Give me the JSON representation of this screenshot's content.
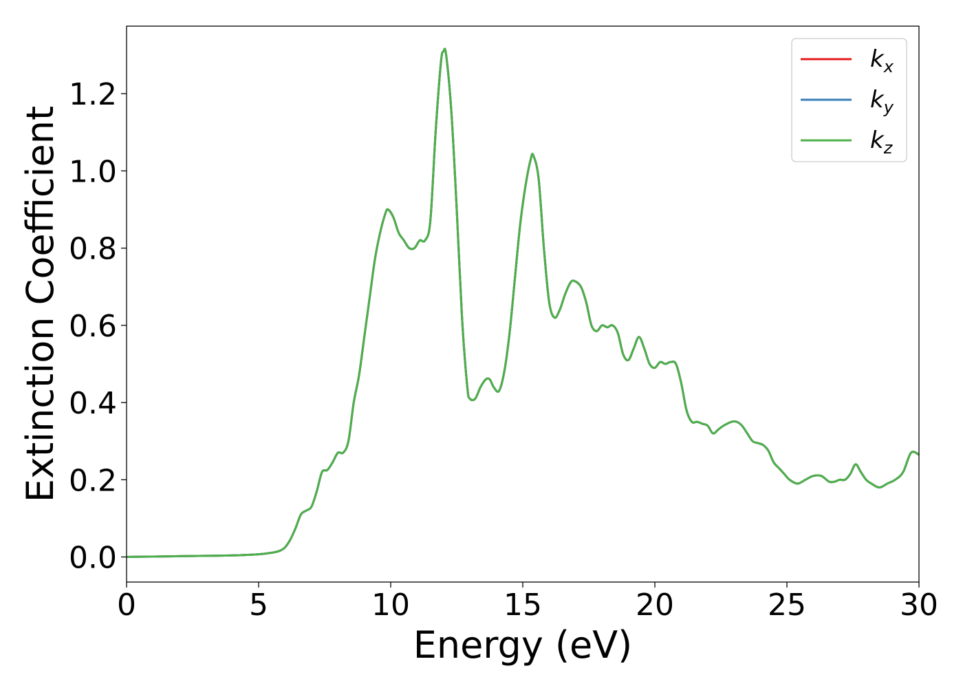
{
  "chart_data": {
    "type": "line",
    "xlabel": "Energy (eV)",
    "ylabel": "Extinction Coefficient",
    "xlim": [
      0,
      30
    ],
    "ylim": [
      -0.065,
      1.375
    ],
    "xticks": [
      0,
      5,
      10,
      15,
      20,
      25,
      30
    ],
    "yticks": [
      0.0,
      0.2,
      0.4,
      0.6,
      0.8,
      1.0,
      1.2
    ],
    "xtick_labels": [
      "0",
      "5",
      "10",
      "15",
      "20",
      "25",
      "30"
    ],
    "ytick_labels": [
      "0.0",
      "0.2",
      "0.4",
      "0.6",
      "0.8",
      "1.0",
      "1.2"
    ],
    "grid": false,
    "legend": {
      "placement": "top-right"
    },
    "series": [
      {
        "name": "kx",
        "label_main": "k",
        "label_sub": "x",
        "color": "#e41a1c",
        "x": [
          0,
          1,
          2,
          3,
          4,
          5,
          5.5,
          5.8,
          6.0,
          6.2,
          6.4,
          6.6,
          6.8,
          7.0,
          7.2,
          7.4,
          7.6,
          7.8,
          8.0,
          8.2,
          8.4,
          8.6,
          8.8,
          9.0,
          9.2,
          9.4,
          9.6,
          9.8,
          9.9,
          10.1,
          10.3,
          10.5,
          10.7,
          10.9,
          11.1,
          11.3,
          11.5,
          11.7,
          11.9,
          12.0,
          12.1,
          12.3,
          12.5,
          12.7,
          12.9,
          13.0,
          13.2,
          13.4,
          13.6,
          13.75,
          13.9,
          14.1,
          14.3,
          14.5,
          14.7,
          14.9,
          15.1,
          15.3,
          15.4,
          15.6,
          15.8,
          16.0,
          16.2,
          16.4,
          16.6,
          16.8,
          16.95,
          17.2,
          17.4,
          17.6,
          17.8,
          18.0,
          18.2,
          18.4,
          18.6,
          18.8,
          19.0,
          19.2,
          19.4,
          19.6,
          19.8,
          20.0,
          20.2,
          20.4,
          20.6,
          20.8,
          21.0,
          21.2,
          21.4,
          21.6,
          21.8,
          22.0,
          22.2,
          22.4,
          22.6,
          22.9,
          23.1,
          23.3,
          23.5,
          23.7,
          23.9,
          24.1,
          24.3,
          24.5,
          24.7,
          24.9,
          25.1,
          25.4,
          25.7,
          26.0,
          26.3,
          26.6,
          26.8,
          27.0,
          27.2,
          27.4,
          27.6,
          27.8,
          28.0,
          28.2,
          28.5,
          28.8,
          29.1,
          29.4,
          29.7,
          30.0
        ],
        "y": [
          0.0,
          0.001,
          0.002,
          0.003,
          0.004,
          0.007,
          0.011,
          0.016,
          0.025,
          0.045,
          0.075,
          0.11,
          0.12,
          0.13,
          0.17,
          0.22,
          0.225,
          0.245,
          0.27,
          0.27,
          0.3,
          0.4,
          0.47,
          0.57,
          0.67,
          0.77,
          0.84,
          0.89,
          0.9,
          0.88,
          0.84,
          0.82,
          0.8,
          0.8,
          0.82,
          0.82,
          0.87,
          1.1,
          1.28,
          1.31,
          1.3,
          1.15,
          0.9,
          0.62,
          0.44,
          0.41,
          0.41,
          0.44,
          0.46,
          0.46,
          0.44,
          0.43,
          0.48,
          0.58,
          0.72,
          0.86,
          0.96,
          1.03,
          1.04,
          0.98,
          0.8,
          0.66,
          0.62,
          0.64,
          0.68,
          0.71,
          0.715,
          0.7,
          0.66,
          0.6,
          0.585,
          0.6,
          0.595,
          0.6,
          0.58,
          0.525,
          0.51,
          0.54,
          0.57,
          0.54,
          0.5,
          0.49,
          0.505,
          0.5,
          0.505,
          0.5,
          0.45,
          0.38,
          0.35,
          0.35,
          0.345,
          0.34,
          0.32,
          0.33,
          0.34,
          0.35,
          0.35,
          0.34,
          0.32,
          0.3,
          0.295,
          0.29,
          0.275,
          0.245,
          0.23,
          0.215,
          0.2,
          0.19,
          0.2,
          0.21,
          0.21,
          0.195,
          0.195,
          0.2,
          0.2,
          0.215,
          0.24,
          0.22,
          0.2,
          0.19,
          0.18,
          0.19,
          0.2,
          0.22,
          0.27,
          0.265
        ]
      },
      {
        "name": "ky",
        "label_main": "k",
        "label_sub": "y",
        "color": "#377eb8",
        "x": [
          0,
          1,
          2,
          3,
          4,
          5,
          5.5,
          5.8,
          6.0,
          6.2,
          6.4,
          6.6,
          6.8,
          7.0,
          7.2,
          7.4,
          7.6,
          7.8,
          8.0,
          8.2,
          8.4,
          8.6,
          8.8,
          9.0,
          9.2,
          9.4,
          9.6,
          9.8,
          9.9,
          10.1,
          10.3,
          10.5,
          10.7,
          10.9,
          11.1,
          11.3,
          11.5,
          11.7,
          11.9,
          12.0,
          12.1,
          12.3,
          12.5,
          12.7,
          12.9,
          13.0,
          13.2,
          13.4,
          13.6,
          13.75,
          13.9,
          14.1,
          14.3,
          14.5,
          14.7,
          14.9,
          15.1,
          15.3,
          15.4,
          15.6,
          15.8,
          16.0,
          16.2,
          16.4,
          16.6,
          16.8,
          16.95,
          17.2,
          17.4,
          17.6,
          17.8,
          18.0,
          18.2,
          18.4,
          18.6,
          18.8,
          19.0,
          19.2,
          19.4,
          19.6,
          19.8,
          20.0,
          20.2,
          20.4,
          20.6,
          20.8,
          21.0,
          21.2,
          21.4,
          21.6,
          21.8,
          22.0,
          22.2,
          22.4,
          22.6,
          22.9,
          23.1,
          23.3,
          23.5,
          23.7,
          23.9,
          24.1,
          24.3,
          24.5,
          24.7,
          24.9,
          25.1,
          25.4,
          25.7,
          26.0,
          26.3,
          26.6,
          26.8,
          27.0,
          27.2,
          27.4,
          27.6,
          27.8,
          28.0,
          28.2,
          28.5,
          28.8,
          29.1,
          29.4,
          29.7,
          30.0
        ],
        "y": [
          0.0,
          0.001,
          0.002,
          0.003,
          0.004,
          0.007,
          0.011,
          0.016,
          0.025,
          0.045,
          0.075,
          0.11,
          0.12,
          0.13,
          0.17,
          0.22,
          0.225,
          0.245,
          0.27,
          0.27,
          0.3,
          0.4,
          0.47,
          0.57,
          0.67,
          0.77,
          0.84,
          0.89,
          0.9,
          0.88,
          0.84,
          0.82,
          0.8,
          0.8,
          0.82,
          0.82,
          0.87,
          1.1,
          1.28,
          1.31,
          1.3,
          1.15,
          0.9,
          0.62,
          0.44,
          0.41,
          0.41,
          0.44,
          0.46,
          0.46,
          0.44,
          0.43,
          0.48,
          0.58,
          0.72,
          0.86,
          0.96,
          1.03,
          1.04,
          0.98,
          0.8,
          0.66,
          0.62,
          0.64,
          0.68,
          0.71,
          0.715,
          0.7,
          0.66,
          0.6,
          0.585,
          0.6,
          0.595,
          0.6,
          0.58,
          0.525,
          0.51,
          0.54,
          0.57,
          0.54,
          0.5,
          0.49,
          0.505,
          0.5,
          0.505,
          0.5,
          0.45,
          0.38,
          0.35,
          0.35,
          0.345,
          0.34,
          0.32,
          0.33,
          0.34,
          0.35,
          0.35,
          0.34,
          0.32,
          0.3,
          0.295,
          0.29,
          0.275,
          0.245,
          0.23,
          0.215,
          0.2,
          0.19,
          0.2,
          0.21,
          0.21,
          0.195,
          0.195,
          0.2,
          0.2,
          0.215,
          0.24,
          0.22,
          0.2,
          0.19,
          0.18,
          0.19,
          0.2,
          0.22,
          0.27,
          0.265
        ]
      },
      {
        "name": "kz",
        "label_main": "k",
        "label_sub": "z",
        "color": "#4daf4a",
        "x": [
          0,
          1,
          2,
          3,
          4,
          5,
          5.5,
          5.8,
          6.0,
          6.2,
          6.4,
          6.6,
          6.8,
          7.0,
          7.2,
          7.4,
          7.6,
          7.8,
          8.0,
          8.2,
          8.4,
          8.6,
          8.8,
          9.0,
          9.2,
          9.4,
          9.6,
          9.8,
          9.9,
          10.1,
          10.3,
          10.5,
          10.7,
          10.9,
          11.1,
          11.3,
          11.5,
          11.7,
          11.9,
          12.0,
          12.1,
          12.3,
          12.5,
          12.7,
          12.9,
          13.0,
          13.2,
          13.4,
          13.6,
          13.75,
          13.9,
          14.1,
          14.3,
          14.5,
          14.7,
          14.9,
          15.1,
          15.3,
          15.4,
          15.6,
          15.8,
          16.0,
          16.2,
          16.4,
          16.6,
          16.8,
          16.95,
          17.2,
          17.4,
          17.6,
          17.8,
          18.0,
          18.2,
          18.4,
          18.6,
          18.8,
          19.0,
          19.2,
          19.4,
          19.6,
          19.8,
          20.0,
          20.2,
          20.4,
          20.6,
          20.8,
          21.0,
          21.2,
          21.4,
          21.6,
          21.8,
          22.0,
          22.2,
          22.4,
          22.6,
          22.9,
          23.1,
          23.3,
          23.5,
          23.7,
          23.9,
          24.1,
          24.3,
          24.5,
          24.7,
          24.9,
          25.1,
          25.4,
          25.7,
          26.0,
          26.3,
          26.6,
          26.8,
          27.0,
          27.2,
          27.4,
          27.6,
          27.8,
          28.0,
          28.2,
          28.5,
          28.8,
          29.1,
          29.4,
          29.7,
          30.0
        ],
        "y": [
          0.0,
          0.001,
          0.002,
          0.003,
          0.004,
          0.007,
          0.011,
          0.016,
          0.025,
          0.045,
          0.075,
          0.11,
          0.12,
          0.13,
          0.17,
          0.22,
          0.225,
          0.245,
          0.27,
          0.27,
          0.3,
          0.4,
          0.47,
          0.57,
          0.67,
          0.77,
          0.84,
          0.89,
          0.9,
          0.88,
          0.84,
          0.82,
          0.8,
          0.8,
          0.82,
          0.82,
          0.87,
          1.1,
          1.28,
          1.31,
          1.3,
          1.15,
          0.9,
          0.62,
          0.44,
          0.41,
          0.41,
          0.44,
          0.46,
          0.46,
          0.44,
          0.43,
          0.48,
          0.58,
          0.72,
          0.86,
          0.96,
          1.03,
          1.04,
          0.98,
          0.8,
          0.66,
          0.62,
          0.64,
          0.68,
          0.71,
          0.715,
          0.7,
          0.66,
          0.6,
          0.585,
          0.6,
          0.595,
          0.6,
          0.58,
          0.525,
          0.51,
          0.54,
          0.57,
          0.54,
          0.5,
          0.49,
          0.505,
          0.5,
          0.505,
          0.5,
          0.45,
          0.38,
          0.35,
          0.35,
          0.345,
          0.34,
          0.32,
          0.33,
          0.34,
          0.35,
          0.35,
          0.34,
          0.32,
          0.3,
          0.295,
          0.29,
          0.275,
          0.245,
          0.23,
          0.215,
          0.2,
          0.19,
          0.2,
          0.21,
          0.21,
          0.195,
          0.195,
          0.2,
          0.2,
          0.215,
          0.24,
          0.22,
          0.2,
          0.19,
          0.18,
          0.19,
          0.2,
          0.22,
          0.27,
          0.265
        ]
      }
    ]
  }
}
